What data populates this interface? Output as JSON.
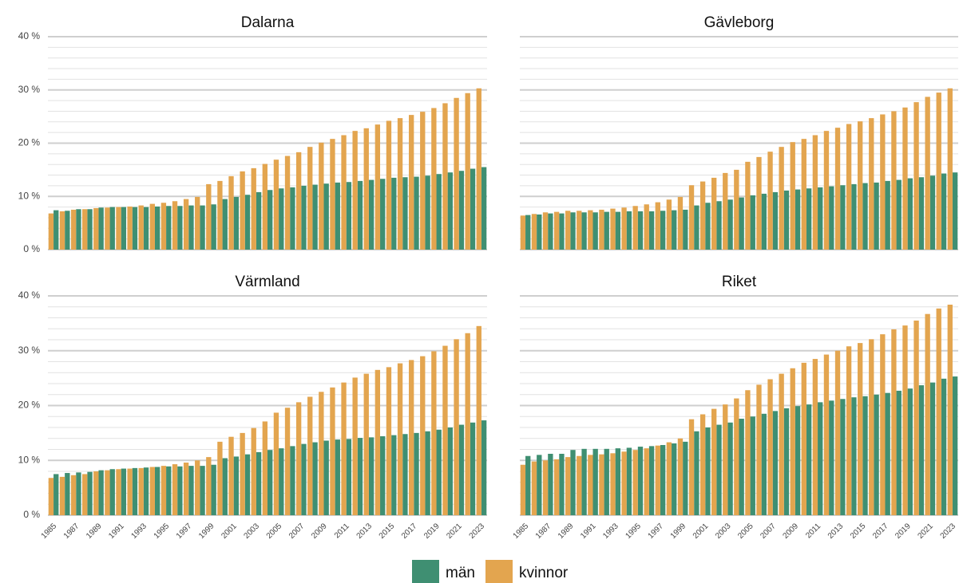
{
  "chart_data": [
    {
      "type": "bar",
      "title": "Dalarna",
      "series": [
        {
          "name": "män",
          "color": "#3f8f72",
          "values": [
            7.4,
            7.3,
            7.6,
            7.6,
            7.9,
            8.0,
            8.0,
            8.0,
            8.0,
            8.1,
            8.2,
            8.2,
            8.3,
            8.3,
            8.5,
            9.5,
            9.9,
            10.3,
            10.8,
            11.2,
            11.5,
            11.7,
            12.0,
            12.2,
            12.4,
            12.6,
            12.7,
            12.9,
            13.1,
            13.3,
            13.5,
            13.6,
            13.7,
            13.9,
            14.2,
            14.5,
            14.8,
            15.2,
            15.5
          ]
        },
        {
          "name": "kvinnor",
          "color": "#e3a54f",
          "values": [
            6.8,
            7.2,
            7.5,
            7.6,
            7.8,
            7.9,
            8.0,
            8.1,
            8.3,
            8.6,
            8.8,
            9.1,
            9.5,
            9.9,
            12.3,
            12.9,
            13.8,
            14.7,
            15.3,
            16.1,
            16.9,
            17.6,
            18.3,
            19.3,
            20.1,
            20.8,
            21.5,
            22.3,
            22.8,
            23.5,
            24.2,
            24.7,
            25.3,
            25.9,
            26.6,
            27.5,
            28.5,
            29.4,
            30.3
          ]
        }
      ],
      "ylim": [
        0,
        40
      ],
      "yticks": [
        {
          "value": 0,
          "label": "0 %"
        },
        {
          "value": 10,
          "label": "10 %"
        },
        {
          "value": 20,
          "label": "20 %"
        },
        {
          "value": 30,
          "label": "30 %"
        },
        {
          "value": 40,
          "label": "40 %"
        }
      ],
      "y_minor_ticks": [
        2,
        4,
        6,
        8,
        12,
        14,
        16,
        18,
        22,
        24,
        26,
        28,
        32,
        34,
        36,
        38
      ],
      "grid": true
    },
    {
      "type": "bar",
      "title": "Gävleborg",
      "series": [
        {
          "name": "män",
          "color": "#3f8f72",
          "values": [
            6.5,
            6.6,
            6.8,
            6.8,
            7.0,
            7.0,
            7.0,
            7.1,
            7.1,
            7.2,
            7.2,
            7.2,
            7.3,
            7.4,
            7.5,
            8.3,
            8.8,
            9.1,
            9.4,
            9.8,
            10.2,
            10.5,
            10.8,
            11.1,
            11.3,
            11.5,
            11.7,
            11.9,
            12.1,
            12.3,
            12.5,
            12.6,
            12.9,
            13.1,
            13.4,
            13.6,
            13.9,
            14.3,
            14.5
          ]
        },
        {
          "name": "kvinnor",
          "color": "#e3a54f",
          "values": [
            6.4,
            6.7,
            7.0,
            7.1,
            7.3,
            7.3,
            7.4,
            7.5,
            7.7,
            7.9,
            8.2,
            8.5,
            8.9,
            9.4,
            9.9,
            12.1,
            12.8,
            13.5,
            14.4,
            15.0,
            16.5,
            17.4,
            18.4,
            19.3,
            20.2,
            20.8,
            21.5,
            22.3,
            22.9,
            23.6,
            24.1,
            24.7,
            25.4,
            26.0,
            26.7,
            27.7,
            28.7,
            29.5,
            30.3
          ]
        }
      ],
      "ylim": [
        0,
        40
      ],
      "y_minor_ticks": [
        2,
        4,
        6,
        8,
        12,
        14,
        16,
        18,
        22,
        24,
        26,
        28,
        32,
        34,
        36,
        38
      ],
      "yticks_major": [
        0,
        10,
        20,
        30,
        40
      ],
      "grid": true
    },
    {
      "type": "bar",
      "title": "Värmland",
      "categories": [
        "1985",
        null,
        "1987",
        null,
        "1989",
        null,
        "1991",
        null,
        "1993",
        null,
        "1995",
        null,
        "1997",
        null,
        "1999",
        null,
        "2001",
        null,
        "2003",
        null,
        "2005",
        null,
        "2007",
        null,
        "2009",
        null,
        "2011",
        null,
        "2013",
        null,
        "2015",
        null,
        "2017",
        null,
        "2019",
        null,
        "2021",
        null,
        "2023"
      ],
      "series": [
        {
          "name": "män",
          "color": "#3f8f72",
          "values": [
            7.5,
            7.7,
            7.8,
            7.9,
            8.2,
            8.4,
            8.5,
            8.6,
            8.7,
            8.8,
            8.9,
            8.9,
            9.0,
            9.0,
            9.2,
            10.4,
            10.7,
            11.1,
            11.5,
            11.9,
            12.2,
            12.6,
            13.0,
            13.3,
            13.6,
            13.8,
            13.9,
            14.1,
            14.2,
            14.4,
            14.6,
            14.8,
            15.0,
            15.3,
            15.6,
            16.0,
            16.5,
            16.9,
            17.3
          ]
        },
        {
          "name": "kvinnor",
          "color": "#e3a54f",
          "values": [
            6.8,
            7.0,
            7.3,
            7.5,
            8.0,
            8.2,
            8.4,
            8.5,
            8.6,
            8.8,
            9.0,
            9.3,
            9.6,
            10.0,
            10.6,
            13.4,
            14.3,
            15.0,
            15.9,
            17.1,
            18.7,
            19.6,
            20.6,
            21.6,
            22.5,
            23.3,
            24.2,
            25.1,
            25.8,
            26.5,
            27.0,
            27.7,
            28.3,
            29.0,
            29.9,
            30.9,
            32.1,
            33.2,
            34.5
          ]
        }
      ],
      "ylim": [
        0,
        40
      ],
      "yticks": [
        {
          "value": 0,
          "label": "0 %"
        },
        {
          "value": 10,
          "label": "10 %"
        },
        {
          "value": 20,
          "label": "20 %"
        },
        {
          "value": 30,
          "label": "30 %"
        },
        {
          "value": 40,
          "label": "40 %"
        }
      ],
      "y_minor_ticks": [
        2,
        4,
        6,
        8,
        12,
        14,
        16,
        18,
        22,
        24,
        26,
        28,
        32,
        34,
        36,
        38
      ],
      "grid": true
    },
    {
      "type": "bar",
      "title": "Riket",
      "categories": [
        "1985",
        null,
        "1987",
        null,
        "1989",
        null,
        "1991",
        null,
        "1993",
        null,
        "1995",
        null,
        "1997",
        null,
        "1999",
        null,
        "2001",
        null,
        "2003",
        null,
        "2005",
        null,
        "2007",
        null,
        "2009",
        null,
        "2011",
        null,
        "2013",
        null,
        "2015",
        null,
        "2017",
        null,
        "2019",
        null,
        "2021",
        null,
        "2023"
      ],
      "series": [
        {
          "name": "män",
          "color": "#3f8f72",
          "values": [
            10.8,
            11.0,
            11.2,
            11.2,
            11.9,
            12.1,
            12.1,
            12.1,
            12.2,
            12.3,
            12.5,
            12.6,
            12.8,
            13.1,
            13.4,
            15.3,
            16.0,
            16.5,
            16.9,
            17.6,
            18.0,
            18.5,
            19.0,
            19.5,
            19.9,
            20.2,
            20.6,
            20.9,
            21.2,
            21.5,
            21.7,
            22.0,
            22.3,
            22.7,
            23.1,
            23.7,
            24.2,
            24.9,
            25.3
          ]
        },
        {
          "name": "kvinnor",
          "color": "#e3a54f",
          "values": [
            9.2,
            9.8,
            10.0,
            10.2,
            10.6,
            10.8,
            11.0,
            11.1,
            11.3,
            11.6,
            11.9,
            12.2,
            12.7,
            13.3,
            14.0,
            17.5,
            18.4,
            19.4,
            20.2,
            21.3,
            22.8,
            23.8,
            24.8,
            25.8,
            26.8,
            27.8,
            28.5,
            29.3,
            30.0,
            30.8,
            31.4,
            32.1,
            33.0,
            33.9,
            34.6,
            35.5,
            36.7,
            37.7,
            38.4
          ]
        }
      ],
      "ylim": [
        0,
        40
      ],
      "y_minor_ticks": [
        2,
        4,
        6,
        8,
        12,
        14,
        16,
        18,
        22,
        24,
        26,
        28,
        32,
        34,
        36,
        38
      ],
      "yticks_major": [
        0,
        10,
        20,
        30,
        40
      ],
      "grid": true
    }
  ]
}
